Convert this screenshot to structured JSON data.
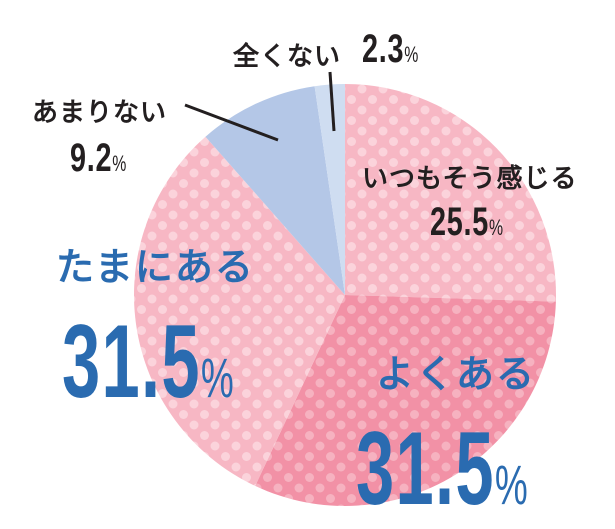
{
  "chart_data": {
    "type": "pie",
    "title": "",
    "start_angle_deg": 0,
    "direction": "clockwise",
    "center": [
      345,
      295
    ],
    "radius": 211,
    "slices": [
      {
        "label": "いつもそう感じる",
        "value": 25.5,
        "color": "#f7b7c4",
        "pattern": "dots"
      },
      {
        "label": "よくある",
        "value": 31.5,
        "color": "#f291a6",
        "pattern": "dots"
      },
      {
        "label": "たまにある",
        "value": 31.5,
        "color": "#f7b7c4",
        "pattern": "dots"
      },
      {
        "label": "あまりない",
        "value": 9.2,
        "color": "#b4c7e7",
        "pattern": "none"
      },
      {
        "label": "全くない",
        "value": 2.3,
        "color": "#cfddf1",
        "pattern": "none"
      }
    ],
    "unit": "%"
  },
  "labels": {
    "zenkunai": {
      "text": "全くない",
      "value": "2.3",
      "unit": "%"
    },
    "amarinai": {
      "text": "あまりない",
      "value": "9.2",
      "unit": "%"
    },
    "itsumo": {
      "text": "いつもそう感じる",
      "value": "25.5",
      "unit": "%"
    },
    "yokuaru": {
      "text": "よくある",
      "value": "31.5",
      "unit": "%"
    },
    "tamani": {
      "text": "たまにある",
      "value": "31.5",
      "unit": "%"
    }
  },
  "colors": {
    "pink_light": "#f7b7c4",
    "pink_dark": "#f291a6",
    "blue_mid": "#b4c7e7",
    "blue_light": "#cfddf1",
    "accent_blue": "#2a6bb0",
    "text_dark": "#231f20",
    "dot": "#ffffff"
  }
}
